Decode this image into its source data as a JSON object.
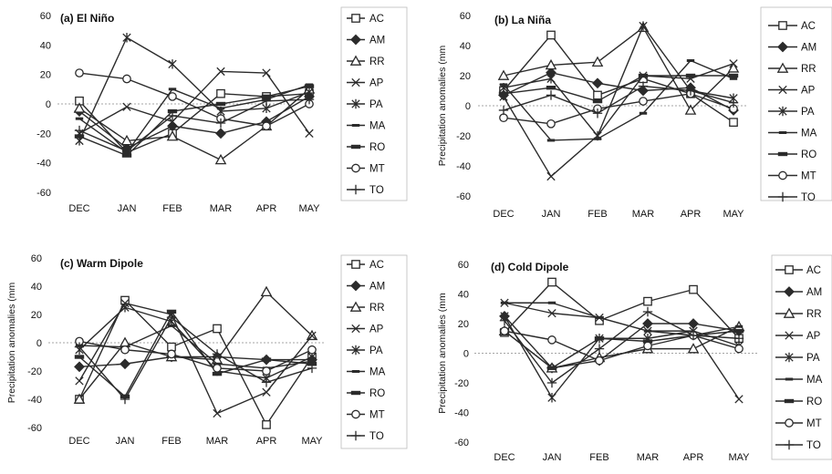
{
  "chart_data": [
    {
      "type": "line",
      "title": "(a) El Niño",
      "ylabel": "",
      "xlabel": "",
      "categories": [
        "DEC",
        "JAN",
        "FEB",
        "MAR",
        "APR",
        "MAY"
      ],
      "ylim": [
        -60,
        60
      ],
      "yticks": [
        "60",
        "40",
        "20",
        "0",
        "-20",
        "-40",
        "-60"
      ],
      "legend_position": "right",
      "series": [
        {
          "name": "AC",
          "marker": "square",
          "values": [
            2,
            -33,
            -20,
            7,
            5,
            7
          ]
        },
        {
          "name": "AM",
          "marker": "diamond",
          "values": [
            -5,
            -30,
            -15,
            -20,
            -12,
            5
          ]
        },
        {
          "name": "RR",
          "marker": "triangle",
          "values": [
            -3,
            -25,
            -22,
            -38,
            -15,
            10
          ]
        },
        {
          "name": "AP",
          "marker": "x",
          "values": [
            -20,
            -2,
            -12,
            22,
            21,
            -20
          ]
        },
        {
          "name": "PA",
          "marker": "star",
          "values": [
            -25,
            45,
            27,
            -5,
            -3,
            8
          ]
        },
        {
          "name": "MA",
          "marker": "dash",
          "values": [
            -10,
            -33,
            10,
            -3,
            3,
            13
          ]
        },
        {
          "name": "RO",
          "marker": "bar",
          "values": [
            -22,
            -35,
            -5,
            0,
            5,
            12
          ]
        },
        {
          "name": "MT",
          "marker": "circle",
          "values": [
            21,
            17,
            5,
            -10,
            -15,
            0
          ]
        },
        {
          "name": "TO",
          "marker": "plus",
          "values": [
            -18,
            -32,
            -8,
            -13,
            2,
            3
          ]
        }
      ]
    },
    {
      "type": "line",
      "title": "(b) La Niña",
      "ylabel": "Precipitation anomalies (mm",
      "xlabel": "",
      "categories": [
        "DEC",
        "JAN",
        "FEB",
        "MAR",
        "APR",
        "MAY"
      ],
      "ylim": [
        -60,
        60
      ],
      "yticks": [
        "60",
        "40",
        "20",
        "0",
        "-20",
        "-40",
        "-60"
      ],
      "legend_position": "right",
      "series": [
        {
          "name": "AC",
          "marker": "square",
          "values": [
            10,
            47,
            7,
            18,
            8,
            -11
          ]
        },
        {
          "name": "AM",
          "marker": "diamond",
          "values": [
            7,
            22,
            15,
            10,
            12,
            -3
          ]
        },
        {
          "name": "RR",
          "marker": "triangle",
          "values": [
            20,
            27,
            29,
            52,
            -3,
            25
          ]
        },
        {
          "name": "AP",
          "marker": "x",
          "values": [
            6,
            -47,
            -20,
            20,
            18,
            28
          ]
        },
        {
          "name": "PA",
          "marker": "star",
          "values": [
            12,
            18,
            -20,
            53,
            10,
            5
          ]
        },
        {
          "name": "MA",
          "marker": "dash",
          "values": [
            14,
            -23,
            -22,
            -5,
            30,
            18
          ]
        },
        {
          "name": "RO",
          "marker": "bar",
          "values": [
            8,
            12,
            3,
            20,
            20,
            20
          ]
        },
        {
          "name": "MT",
          "marker": "circle",
          "values": [
            -8,
            -12,
            -2,
            3,
            8,
            -2
          ]
        },
        {
          "name": "TO",
          "marker": "plus",
          "values": [
            -3,
            7,
            -5,
            13,
            10,
            2
          ]
        }
      ]
    },
    {
      "type": "line",
      "title": "(c) Warm Dipole",
      "ylabel": "Precipitation anomalies (mm",
      "xlabel": "",
      "categories": [
        "DEC",
        "JAN",
        "FEB",
        "MAR",
        "APR",
        "MAY"
      ],
      "ylim": [
        -60,
        60
      ],
      "yticks": [
        "60",
        "40",
        "20",
        "0",
        "-20",
        "-40",
        "-60"
      ],
      "legend_position": "right",
      "series": [
        {
          "name": "AC",
          "marker": "square",
          "values": [
            -40,
            30,
            -3,
            10,
            -58,
            -10
          ]
        },
        {
          "name": "AM",
          "marker": "diamond",
          "values": [
            -17,
            -15,
            -10,
            -10,
            -12,
            -12
          ]
        },
        {
          "name": "RR",
          "marker": "triangle",
          "values": [
            -40,
            0,
            -10,
            -12,
            36,
            5
          ]
        },
        {
          "name": "AP",
          "marker": "x",
          "values": [
            -27,
            28,
            20,
            -50,
            -35,
            5
          ]
        },
        {
          "name": "PA",
          "marker": "star",
          "values": [
            -5,
            25,
            15,
            -20,
            -25,
            -10
          ]
        },
        {
          "name": "MA",
          "marker": "dash",
          "values": [
            -2,
            -3,
            12,
            -15,
            -18,
            -13
          ]
        },
        {
          "name": "RO",
          "marker": "bar",
          "values": [
            -10,
            -38,
            22,
            -22,
            -12,
            -15
          ]
        },
        {
          "name": "MT",
          "marker": "circle",
          "values": [
            1,
            -5,
            -8,
            -18,
            -20,
            -5
          ]
        },
        {
          "name": "TO",
          "marker": "plus",
          "values": [
            -3,
            -40,
            18,
            -8,
            -28,
            -18
          ]
        }
      ]
    },
    {
      "type": "line",
      "title": "(d) Cold Dipole",
      "ylabel": "Precipitation anomalies (mm",
      "xlabel": "",
      "categories": [
        "DEC",
        "JAN",
        "FEB",
        "MAR",
        "APR",
        "MAY"
      ],
      "ylim": [
        -60,
        60
      ],
      "yticks": [
        "60",
        "40",
        "20",
        "0",
        "-20",
        "-40",
        "-60"
      ],
      "legend_position": "right",
      "series": [
        {
          "name": "AC",
          "marker": "square",
          "values": [
            14,
            48,
            22,
            35,
            43,
            10
          ]
        },
        {
          "name": "AM",
          "marker": "diamond",
          "values": [
            25,
            -10,
            -5,
            20,
            20,
            15
          ]
        },
        {
          "name": "RR",
          "marker": "triangle",
          "values": [
            15,
            -10,
            -3,
            3,
            3,
            18
          ]
        },
        {
          "name": "AP",
          "marker": "x",
          "values": [
            34,
            27,
            24,
            15,
            15,
            -31
          ]
        },
        {
          "name": "PA",
          "marker": "star",
          "values": [
            25,
            -30,
            10,
            10,
            15,
            5
          ]
        },
        {
          "name": "MA",
          "marker": "dash",
          "values": [
            34,
            34,
            24,
            15,
            12,
            18
          ]
        },
        {
          "name": "RO",
          "marker": "bar",
          "values": [
            15,
            -10,
            10,
            8,
            12,
            15
          ]
        },
        {
          "name": "MT",
          "marker": "circle",
          "values": [
            15,
            9,
            -5,
            5,
            12,
            3
          ]
        },
        {
          "name": "TO",
          "marker": "plus",
          "values": [
            22,
            -20,
            3,
            28,
            12,
            10
          ]
        }
      ]
    }
  ]
}
